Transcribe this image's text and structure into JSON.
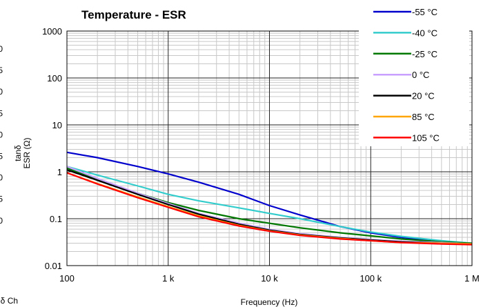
{
  "chart_data": {
    "type": "line",
    "title": "Temperature - ESR",
    "xlabel": "Frequency (Hz)",
    "ylabel_lines": [
      "tanδ",
      "ESR (Ω)"
    ],
    "xscale": "log",
    "yscale": "log",
    "xlim": [
      100,
      1000000
    ],
    "ylim": [
      0.01,
      1000
    ],
    "grid": true,
    "legend": "top-right",
    "x_tick_labels": [
      "100",
      "1 k",
      "10 k",
      "100 k",
      "1 M"
    ],
    "y_tick_labels": [
      "0.01",
      "0.1",
      "1",
      "10",
      "100",
      "1000"
    ],
    "left_edge_fragments": [
      "0",
      "5",
      "0",
      "5",
      "0",
      "5",
      "0",
      "5",
      "0"
    ],
    "bottom_fragment": "tanδ Ch",
    "series": [
      {
        "name": "-55 °C",
        "color": "#0000cc",
        "x": [
          100,
          200,
          500,
          1000,
          2000,
          5000,
          10000,
          20000,
          50000,
          100000,
          200000,
          500000,
          1000000
        ],
        "y": [
          2.6,
          2.0,
          1.3,
          0.9,
          0.6,
          0.33,
          0.19,
          0.12,
          0.068,
          0.05,
          0.04,
          0.033,
          0.03
        ]
      },
      {
        "name": "-40 °C",
        "color": "#33cccc",
        "x": [
          100,
          200,
          500,
          1000,
          2000,
          5000,
          10000,
          20000,
          50000,
          100000,
          200000,
          500000,
          1000000
        ],
        "y": [
          1.3,
          0.85,
          0.5,
          0.33,
          0.24,
          0.17,
          0.13,
          0.1,
          0.068,
          0.052,
          0.042,
          0.034,
          0.03
        ]
      },
      {
        "name": "-25 °C",
        "color": "#007700",
        "x": [
          100,
          200,
          500,
          1000,
          2000,
          5000,
          10000,
          20000,
          50000,
          100000,
          200000,
          500000,
          1000000
        ],
        "y": [
          1.2,
          0.68,
          0.35,
          0.22,
          0.15,
          0.1,
          0.08,
          0.064,
          0.05,
          0.043,
          0.037,
          0.032,
          0.03
        ]
      },
      {
        "name": "0 °C",
        "color": "#c8a0ff",
        "x": [
          100,
          200,
          500,
          1000,
          2000,
          5000,
          10000,
          20000,
          50000,
          100000,
          200000,
          500000,
          1000000
        ],
        "y": [
          1.3,
          0.72,
          0.35,
          0.21,
          0.13,
          0.08,
          0.059,
          0.048,
          0.04,
          0.036,
          0.033,
          0.031,
          0.029
        ]
      },
      {
        "name": "20 °C",
        "color": "#000000",
        "x": [
          100,
          200,
          500,
          1000,
          2000,
          5000,
          10000,
          20000,
          50000,
          100000,
          200000,
          500000,
          1000000
        ],
        "y": [
          1.1,
          0.66,
          0.33,
          0.2,
          0.125,
          0.076,
          0.057,
          0.046,
          0.039,
          0.035,
          0.032,
          0.03,
          0.029
        ]
      },
      {
        "name": "85 °C",
        "color": "#ffa500",
        "x": [
          100,
          200,
          500,
          1000,
          2000,
          5000,
          10000,
          20000,
          50000,
          100000,
          200000,
          500000,
          1000000
        ],
        "y": [
          0.95,
          0.56,
          0.29,
          0.18,
          0.115,
          0.072,
          0.055,
          0.045,
          0.038,
          0.034,
          0.031,
          0.03,
          0.029
        ]
      },
      {
        "name": "105 °C",
        "color": "#ff0000",
        "x": [
          100,
          200,
          500,
          1000,
          2000,
          5000,
          10000,
          20000,
          50000,
          100000,
          200000,
          500000,
          1000000
        ],
        "y": [
          0.95,
          0.55,
          0.28,
          0.175,
          0.11,
          0.07,
          0.054,
          0.044,
          0.037,
          0.034,
          0.031,
          0.029,
          0.028
        ]
      }
    ]
  }
}
